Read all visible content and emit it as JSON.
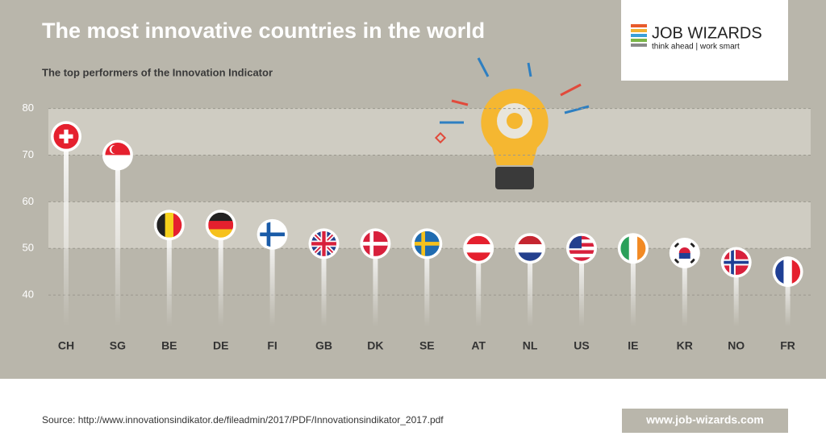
{
  "chart_data": {
    "type": "lollipop",
    "title": "The most innovative countries in the world",
    "subtitle": "The top performers of the Innovation Indicator",
    "categories": [
      "CH",
      "SG",
      "BE",
      "DE",
      "FI",
      "GB",
      "DK",
      "SE",
      "AT",
      "NL",
      "US",
      "IE",
      "KR",
      "NO",
      "FR"
    ],
    "values": [
      74,
      70,
      55,
      55,
      53,
      51,
      51,
      51,
      50,
      50,
      50,
      50,
      49,
      47,
      45
    ],
    "ylim": [
      35,
      82
    ],
    "yticks": [
      40,
      50,
      60,
      70,
      80
    ],
    "grid": true
  },
  "logo": {
    "name": "JOB WIZARDS",
    "tagline": "think ahead | work smart"
  },
  "footer": {
    "source": "Source: http://www.innovationsindikator.de/fileadmin/2017/PDF/Innovationsindikator_2017.pdf",
    "url": "www.job-wizards.com"
  }
}
